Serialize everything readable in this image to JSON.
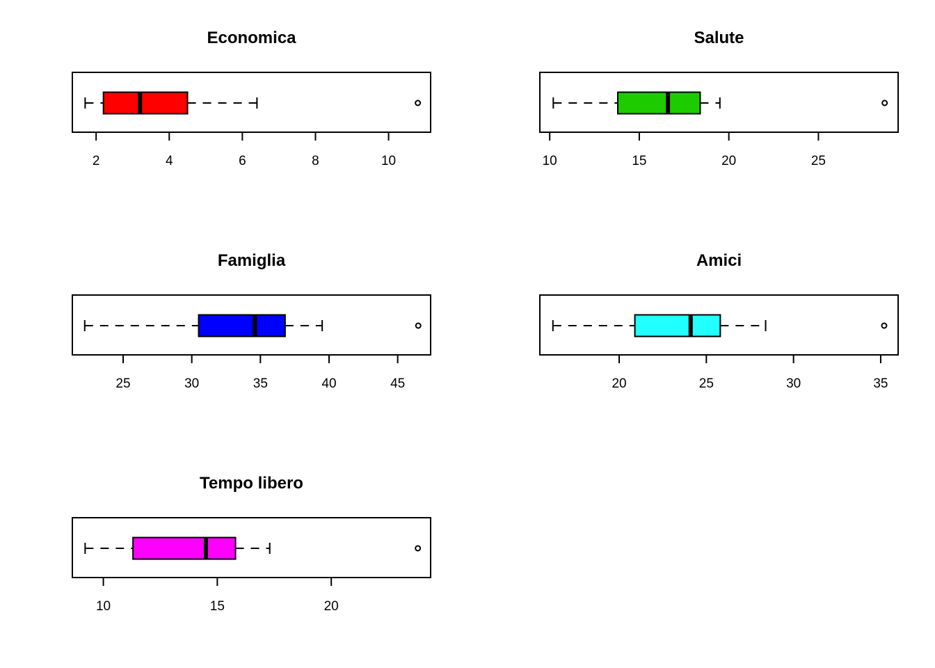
{
  "chart_data": [
    {
      "type": "boxplot",
      "orientation": "horizontal",
      "title": "Economica",
      "color": "#ff0000",
      "stats": {
        "whisker_low": 1.7,
        "q1": 2.2,
        "median": 3.2,
        "q3": 4.5,
        "whisker_high": 6.4
      },
      "outliers": [
        10.8
      ],
      "ticks": [
        2,
        4,
        6,
        8,
        10
      ],
      "xlim": [
        1.35,
        11.15
      ]
    },
    {
      "type": "boxplot",
      "orientation": "horizontal",
      "title": "Salute",
      "color": "#1ccc00",
      "stats": {
        "whisker_low": 10.2,
        "q1": 13.8,
        "median": 16.6,
        "q3": 18.4,
        "whisker_high": 19.5
      },
      "outliers": [
        28.7
      ],
      "ticks": [
        10,
        15,
        20,
        25
      ],
      "xlim": [
        9.45,
        29.45
      ]
    },
    {
      "type": "boxplot",
      "orientation": "horizontal",
      "title": "Famiglia",
      "color": "#0000ff",
      "stats": {
        "whisker_low": 22.2,
        "q1": 30.5,
        "median": 34.6,
        "q3": 36.8,
        "whisker_high": 39.5
      },
      "outliers": [
        46.5
      ],
      "ticks": [
        25,
        30,
        35,
        40,
        45
      ],
      "xlim": [
        21.3,
        47.4
      ]
    },
    {
      "type": "boxplot",
      "orientation": "horizontal",
      "title": "Amici",
      "color": "#22ffff",
      "stats": {
        "whisker_low": 16.2,
        "q1": 20.9,
        "median": 24.1,
        "q3": 25.8,
        "whisker_high": 28.4
      },
      "outliers": [
        35.2
      ],
      "ticks": [
        20,
        25,
        30,
        35
      ],
      "xlim": [
        15.45,
        36.0
      ]
    },
    {
      "type": "boxplot",
      "orientation": "horizontal",
      "title": "Tempo libero",
      "color": "#ff00ff",
      "stats": {
        "whisker_low": 9.2,
        "q1": 11.3,
        "median": 14.5,
        "q3": 15.8,
        "whisker_high": 17.3
      },
      "outliers": [
        23.8
      ],
      "ticks": [
        10,
        15,
        20
      ],
      "xlim": [
        8.64,
        24.36
      ]
    }
  ]
}
